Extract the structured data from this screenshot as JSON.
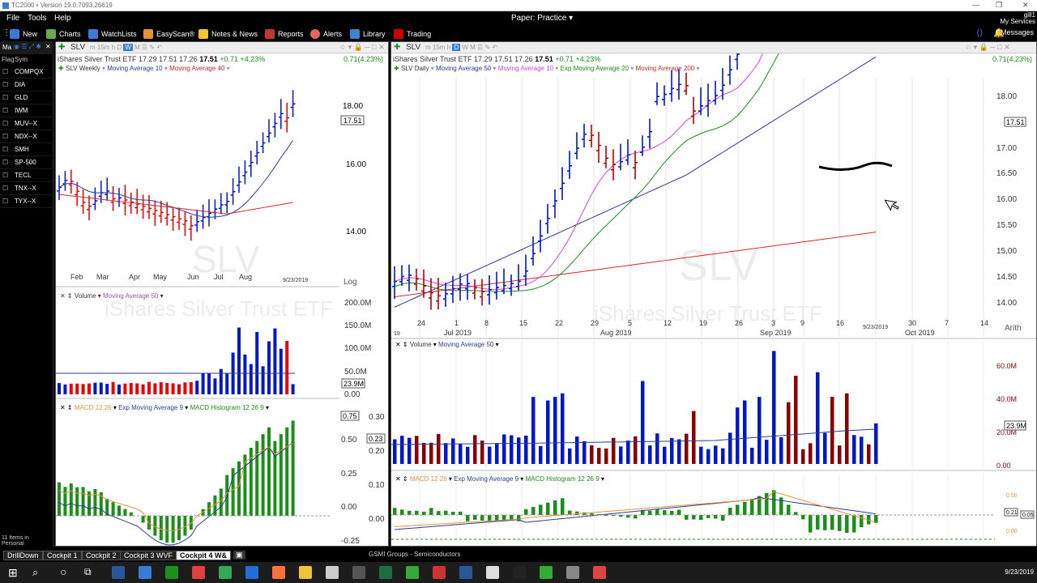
{
  "window": {
    "title": "TC2000 • Version 19.0.7093.26619"
  },
  "menu": {
    "items": [
      "File",
      "Tools",
      "Help"
    ],
    "paper": "Paper: Practice ▾",
    "user_line1": "gill1",
    "user_line2": "My Services"
  },
  "toolbar": {
    "items": [
      {
        "label": "New",
        "color": "#3a7bd5"
      },
      {
        "label": "Charts",
        "color": "#6aa84f"
      },
      {
        "label": "WatchLists",
        "color": "#3a7bd5"
      },
      {
        "label": "EasyScan®",
        "color": "#e69138"
      },
      {
        "label": "Notes & News",
        "color": "#f1c232"
      },
      {
        "label": "Reports",
        "color": "#c0392b"
      },
      {
        "label": "Alerts",
        "color": "#e06666"
      },
      {
        "label": "Library",
        "color": "#3d85c6"
      },
      {
        "label": "Trading",
        "color": "#cc0000"
      }
    ],
    "messages": "Messages"
  },
  "watchlist": {
    "header": "Ma",
    "col_flag": "Flag",
    "col_sym": "Sym",
    "symbols": [
      "COMPQX",
      "DIA",
      "GLD",
      "IWM",
      "MUV--X",
      "NDX--X",
      "SMH",
      "SP-500",
      "TECL",
      "TNX--X",
      "TYX--X"
    ],
    "footer": "11 Items in Personal"
  },
  "left_chart": {
    "symbol": "SLV",
    "quote_name": "iShares Silver Trust ETF",
    "open": "17.29",
    "high": "17.51",
    "low": "17.26",
    "last": "17.51",
    "change": "+0.71",
    "change_pct": "+4.23%",
    "change_right": "0.71(4.23%)",
    "legend_sym": "SLV Weekly",
    "ma1": "Moving Average 10",
    "ma2": "Moving Average 40",
    "price_labels": [
      "18.00",
      "16.00",
      "14.00"
    ],
    "price_box": "17.51",
    "months": [
      "Feb",
      "Mar",
      "Apr",
      "May",
      "Jun",
      "Jul",
      "Aug"
    ],
    "date": "9/23/2019",
    "scale": "Log",
    "wm_sym": "SLV",
    "wm_name": "iShares Silver Trust ETF",
    "vol_label": "Volume",
    "vol_ma": "Moving Average 50",
    "vol_labels": [
      "200.0M",
      "150.0M",
      "100.0M",
      "50.0M",
      "0.00"
    ],
    "vol_box": "23.9M",
    "macd_label": "MACD 12 26",
    "macd_ema": "Exp Moving Average 9",
    "macd_hist": "MACD Histogram 12 26 9",
    "macd_left": [
      "0.75",
      "0.50",
      "0.25",
      "0.00",
      "-0.25"
    ],
    "macd_right": [
      "0.30",
      "0.20",
      "0.10",
      "0.00"
    ],
    "macd_box": "0.23"
  },
  "right_chart": {
    "symbol": "SLV",
    "quote_name": "iShares Silver Trust ETF",
    "open": "17.29",
    "high": "17.51",
    "low": "17.26",
    "last": "17.51",
    "change": "+0.71",
    "change_pct": "+4.23%",
    "change_right": "0.71(4.23%)",
    "legend_sym": "SLV Daily",
    "ma1": "Moving Average 50",
    "ma2": "Moving Average 10",
    "ma3": "Exp Moving Average 20",
    "ma4": "Moving Average 200",
    "price_labels": [
      "18.00",
      "17.00",
      "16.50",
      "16.00",
      "15.50",
      "15.00",
      "14.50",
      "14.00"
    ],
    "price_box": "17.51",
    "days": [
      "24",
      "1",
      "8",
      "15",
      "22",
      "29",
      "5",
      "12",
      "19",
      "26",
      "3",
      "9",
      "16",
      "30",
      "7",
      "14"
    ],
    "months": [
      "Jul 2019",
      "Aug 2019",
      "Sep 2019",
      "Oct 2019"
    ],
    "year_frag": "19",
    "date": "9/23/2019",
    "scale": "Arith",
    "wm_sym": "SLV",
    "wm_name": "iShares Silver Trust ETF",
    "vol_label": "Volume",
    "vol_ma": "Moving Average 50",
    "vol_labels": [
      "60.0M",
      "40.0M",
      "20.0M",
      "0.00"
    ],
    "vol_box": "23.9M",
    "macd_label": "MACD 12 26",
    "macd_ema": "Exp Moving Average 9",
    "macd_hist": "MACD Histogram 12 26 9",
    "macd_labels": [
      "0.50",
      "0.21",
      "0.05",
      "0.00"
    ]
  },
  "tabs": [
    "DrillDown",
    "Cockpit 1",
    "Cockpit 2",
    "Cockpit 3 WVF",
    "Cockpit 4 W&"
  ],
  "active_tab": "Cockpit 4 W&",
  "status_bar": "GSMI Groups - Semiconductors",
  "clock": {
    "date": "9/23/2019"
  }
}
